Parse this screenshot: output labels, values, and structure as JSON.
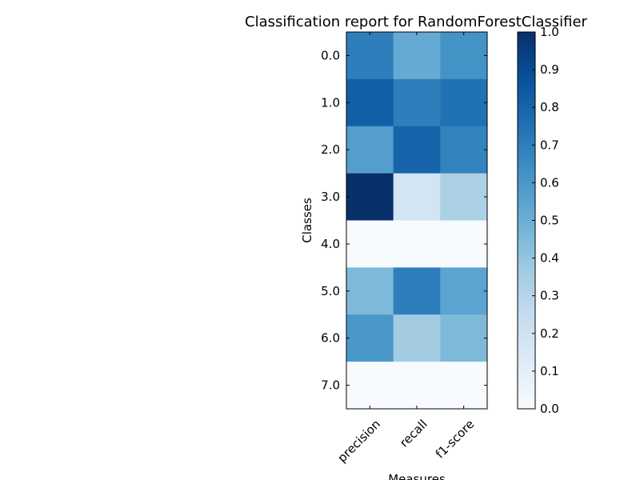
{
  "chart_data": {
    "type": "heatmap",
    "title": "Classification report for RandomForestClassifier",
    "xlabel": "Measures",
    "ylabel": "Classes",
    "columns": [
      "precision",
      "recall",
      "f1-score"
    ],
    "rows": [
      "0.0",
      "1.0",
      "2.0",
      "3.0",
      "4.0",
      "5.0",
      "6.0",
      "7.0"
    ],
    "values": [
      [
        0.7,
        0.52,
        0.62
      ],
      [
        0.82,
        0.7,
        0.75
      ],
      [
        0.57,
        0.8,
        0.68
      ],
      [
        1.0,
        0.18,
        0.33
      ],
      [
        0.0,
        0.0,
        0.0
      ],
      [
        0.45,
        0.7,
        0.55
      ],
      [
        0.6,
        0.36,
        0.45
      ],
      [
        0.0,
        0.0,
        0.0
      ]
    ],
    "colorbar": {
      "min": 0.0,
      "max": 1.0,
      "ticks": [
        "0.0",
        "0.1",
        "0.2",
        "0.3",
        "0.4",
        "0.5",
        "0.6",
        "0.7",
        "0.8",
        "0.9",
        "1.0"
      ]
    },
    "colormap": "Blues",
    "colormap_stops": [
      "#f7fbff",
      "#deebf7",
      "#c6dbef",
      "#9ecae1",
      "#6baed6",
      "#4292c6",
      "#2171b5",
      "#08519c",
      "#08306b"
    ]
  }
}
